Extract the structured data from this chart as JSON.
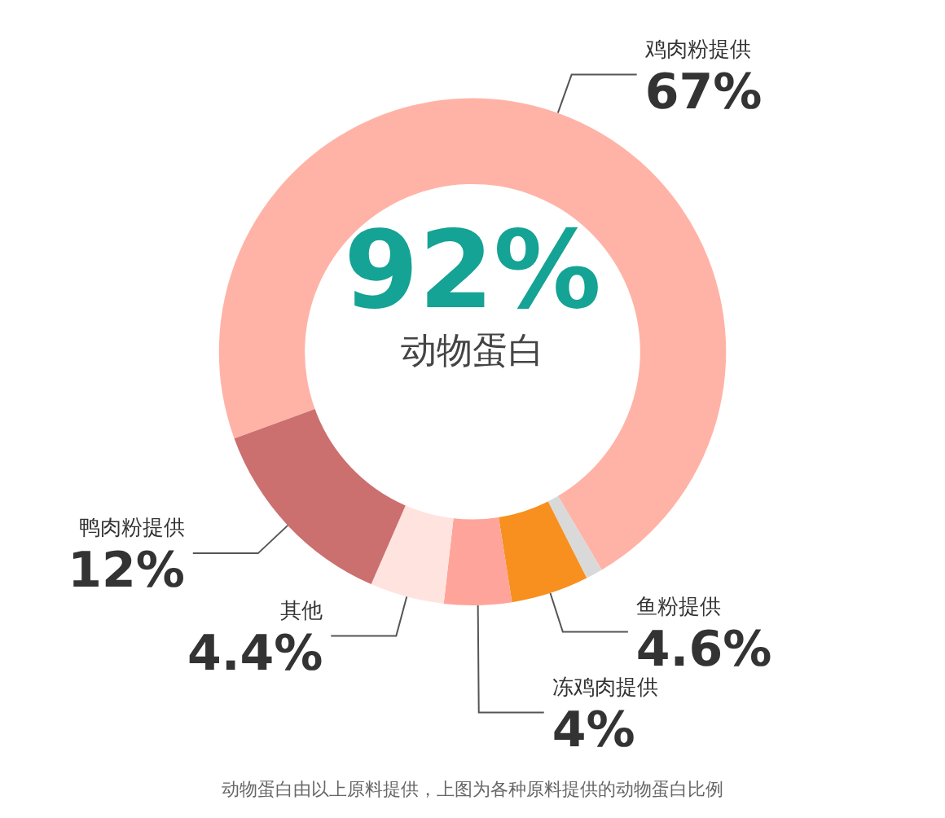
{
  "chart_data": {
    "type": "donut",
    "title": "92%",
    "subtitle": "动物蛋白",
    "categories": [
      "鸡肉粉提供",
      null,
      "鱼粉提供",
      "冻鸡肉提供",
      "其他",
      "鸭肉粉提供"
    ],
    "values": [
      67,
      1,
      4.6,
      4,
      4.4,
      12
    ],
    "colors": [
      "#ffb3a7",
      "#d9d9d9",
      "#f7901e",
      "#ffa49a",
      "#ffe3df",
      "#cc6f6f"
    ],
    "value_labels": [
      "67%",
      null,
      "4.6%",
      "4%",
      "4.4%",
      "12%"
    ],
    "annotations": [
      "动物蛋白由以上原料提供，上图为各种原料提供的动物蛋白比例"
    ]
  }
}
